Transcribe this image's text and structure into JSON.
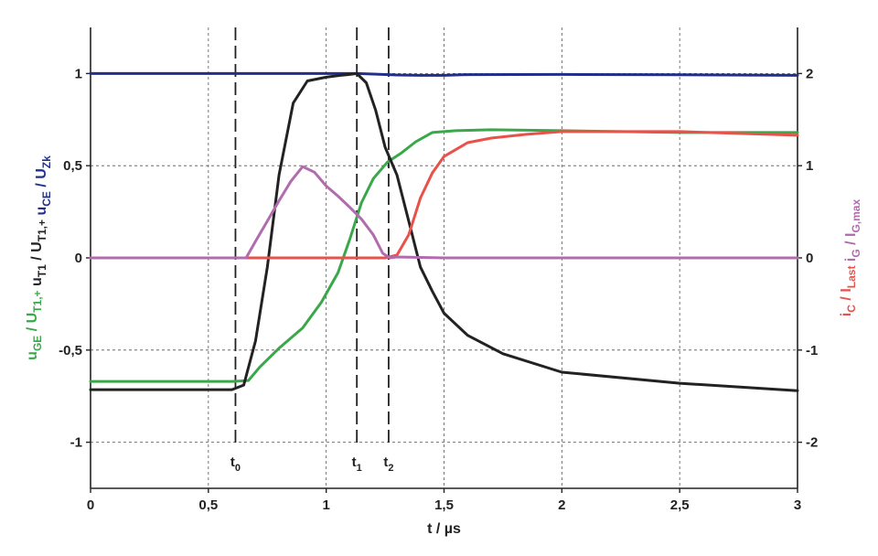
{
  "chart_data": {
    "type": "line",
    "xlabel": "t / µs",
    "xlim": [
      0,
      3
    ],
    "ylim_left": [
      -1.25,
      1.25
    ],
    "ylim_right": [
      -2.5,
      2.5
    ],
    "grid": true,
    "x_ticks": [
      "0",
      "0,5",
      "1",
      "1,5",
      "2",
      "2,5",
      "3"
    ],
    "y_ticks_left": [
      "1",
      "0,5",
      "0",
      "-0,5",
      "-1"
    ],
    "y_ticks_right": [
      "2",
      "1",
      "0",
      "-1",
      "-2"
    ],
    "left_axis_title": [
      {
        "text": "u",
        "sub": "GE",
        "after": " / U",
        "sub2": "T1,+",
        "color": "#3aa84a"
      },
      {
        "text": "  u",
        "sub": "T1",
        "after": " / U",
        "sub2": "T1,+",
        "color": "#222222"
      },
      {
        "text": "  u",
        "sub": "CE",
        "after": " / U",
        "sub2": "Zk",
        "color": "#1f2f8a"
      }
    ],
    "right_axis_title": [
      {
        "text": "i",
        "sub": "C",
        "after": " / I",
        "sub2": "Last",
        "color": "#e8524a"
      },
      {
        "text": "  i",
        "sub": "G",
        "after": " / I",
        "sub2": "G,max",
        "color": "#b06cad"
      }
    ],
    "markers": [
      {
        "label": "t",
        "sub": "0",
        "x": 0.615
      },
      {
        "label": "t",
        "sub": "1",
        "x": 1.13
      },
      {
        "label": "t",
        "sub": "2",
        "x": 1.265
      }
    ],
    "series": [
      {
        "color": "#1f2f8a",
        "axis": "left",
        "x": [
          0,
          0.5,
          1.0,
          1.13,
          1.2,
          1.3,
          1.4,
          1.5,
          1.6,
          2.0,
          2.5,
          3.0
        ],
        "y": [
          1.0,
          1.0,
          1.0,
          1.0,
          0.997,
          0.992,
          0.99,
          0.99,
          0.994,
          0.995,
          0.993,
          0.99
        ]
      },
      {
        "color": "#3aa84a",
        "axis": "left",
        "x": [
          0,
          0.6,
          0.67,
          0.72,
          0.8,
          0.9,
          0.98,
          1.05,
          1.1,
          1.15,
          1.2,
          1.26,
          1.32,
          1.38,
          1.45,
          1.55,
          1.7,
          2.0,
          2.5,
          3.0
        ],
        "y": [
          -0.67,
          -0.67,
          -0.665,
          -0.59,
          -0.49,
          -0.38,
          -0.24,
          -0.08,
          0.1,
          0.3,
          0.43,
          0.52,
          0.57,
          0.63,
          0.68,
          0.69,
          0.695,
          0.69,
          0.68,
          0.68
        ]
      },
      {
        "color": "#222222",
        "axis": "left",
        "x": [
          0,
          0.6,
          0.65,
          0.7,
          0.75,
          0.8,
          0.86,
          0.92,
          1.0,
          1.06,
          1.1,
          1.13,
          1.17,
          1.21,
          1.25,
          1.3,
          1.35,
          1.4,
          1.45,
          1.5,
          1.6,
          1.75,
          2.0,
          2.5,
          3.0
        ],
        "y": [
          -0.715,
          -0.715,
          -0.69,
          -0.45,
          -0.05,
          0.45,
          0.84,
          0.96,
          0.98,
          0.99,
          0.995,
          1.0,
          0.95,
          0.8,
          0.6,
          0.45,
          0.2,
          -0.05,
          -0.18,
          -0.3,
          -0.42,
          -0.52,
          -0.62,
          -0.68,
          -0.72
        ]
      },
      {
        "color": "#e8524a",
        "axis": "right",
        "x": [
          0,
          1.0,
          1.25,
          1.3,
          1.35,
          1.4,
          1.45,
          1.5,
          1.6,
          1.7,
          1.85,
          2.0,
          2.5,
          3.0
        ],
        "y": [
          0,
          0,
          0,
          0.03,
          0.25,
          0.65,
          0.92,
          1.1,
          1.25,
          1.3,
          1.34,
          1.37,
          1.37,
          1.33
        ]
      },
      {
        "color": "#b06cad",
        "axis": "right",
        "x": [
          0,
          0.66,
          0.7,
          0.75,
          0.8,
          0.85,
          0.9,
          0.95,
          1.0,
          1.05,
          1.1,
          1.15,
          1.2,
          1.24,
          1.27,
          1.3,
          1.5,
          2.0,
          3.0
        ],
        "y": [
          0,
          0,
          0.18,
          0.4,
          0.62,
          0.83,
          0.99,
          0.93,
          0.78,
          0.67,
          0.55,
          0.42,
          0.25,
          0.05,
          0,
          0.01,
          0,
          0,
          0
        ]
      }
    ]
  }
}
